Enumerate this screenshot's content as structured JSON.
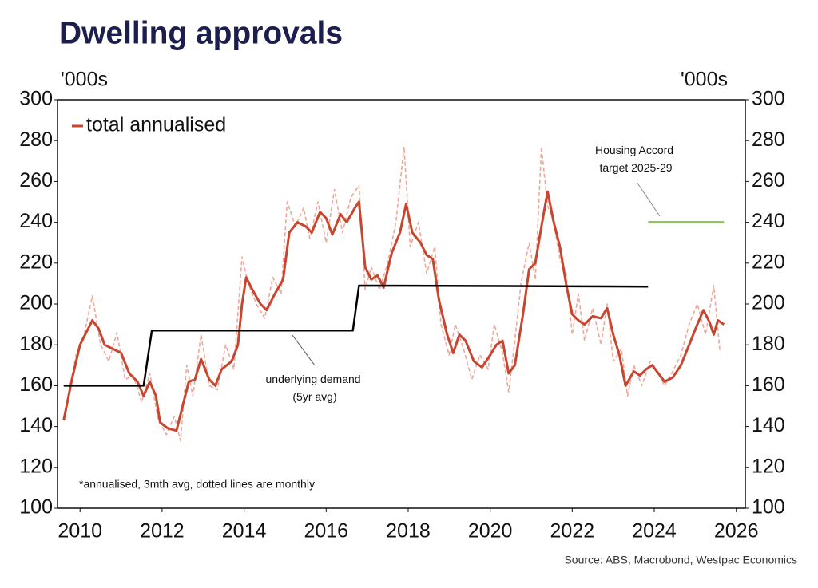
{
  "chart_data": {
    "type": "line",
    "title": "Dwelling approvals",
    "y_unit": "'000s",
    "source": "Source: ABS, Macrobond, Westpac Economics",
    "footnote": "*annualised, 3mth avg, dotted lines are monthly",
    "annotations": [
      {
        "lines": [
          "Housing Accord",
          "target 2025-29"
        ]
      },
      {
        "lines": [
          "underlying demand",
          "(5yr avg)"
        ]
      }
    ],
    "xlim": [
      2009.45,
      2026.22
    ],
    "xticks": [
      2010,
      2012,
      2014,
      2016,
      2018,
      2020,
      2022,
      2024,
      2026
    ],
    "ylim": [
      100,
      300
    ],
    "yticks": [
      100,
      120,
      140,
      160,
      180,
      200,
      220,
      240,
      260,
      280,
      300
    ],
    "legend": "upper left",
    "series": [
      {
        "color": "#eea898",
        "dashed": true,
        "width": 1.6,
        "x": [
          2009.6,
          2009.9,
          2010.1,
          2010.3,
          2010.5,
          2010.7,
          2010.9,
          2011.1,
          2011.3,
          2011.5,
          2011.7,
          2011.9,
          2012.1,
          2012.3,
          2012.45,
          2012.6,
          2012.75,
          2012.95,
          2013.15,
          2013.35,
          2013.55,
          2013.75,
          2013.95,
          2014.1,
          2014.3,
          2014.5,
          2014.7,
          2014.9,
          2015.05,
          2015.25,
          2015.45,
          2015.6,
          2015.8,
          2016.0,
          2016.2,
          2016.4,
          2016.6,
          2016.8,
          2016.95,
          2017.1,
          2017.3,
          2017.5,
          2017.7,
          2017.9,
          2018.05,
          2018.25,
          2018.45,
          2018.65,
          2018.8,
          2019.0,
          2019.15,
          2019.35,
          2019.55,
          2019.75,
          2019.95,
          2020.1,
          2020.3,
          2020.45,
          2020.6,
          2020.75,
          2020.95,
          2021.1,
          2021.25,
          2021.4,
          2021.55,
          2021.7,
          2021.85,
          2022.0,
          2022.15,
          2022.3,
          2022.5,
          2022.7,
          2022.85,
          2023.0,
          2023.2,
          2023.35,
          2023.5,
          2023.7,
          2023.9,
          2024.05,
          2024.25,
          2024.45,
          2024.65,
          2024.85,
          2025.05,
          2025.25,
          2025.45,
          2025.6
        ],
        "values": [
          143,
          175,
          185,
          204,
          180,
          172,
          186,
          163,
          165,
          152,
          166,
          144,
          136,
          145,
          133,
          170,
          155,
          185,
          160,
          158,
          180,
          168,
          223,
          210,
          200,
          193,
          213,
          205,
          250,
          238,
          247,
          232,
          250,
          230,
          256,
          235,
          252,
          258,
          207,
          218,
          207,
          220,
          240,
          277,
          228,
          240,
          215,
          228,
          190,
          175,
          190,
          178,
          163,
          175,
          168,
          190,
          176,
          157,
          182,
          210,
          230,
          212,
          277,
          248,
          240,
          222,
          215,
          185,
          205,
          182,
          198,
          180,
          200,
          172,
          178,
          155,
          170,
          160,
          172,
          168,
          160,
          167,
          175,
          190,
          200,
          185,
          209,
          177
        ]
      },
      {
        "name": "total annualised",
        "color": "#c8452f",
        "width": 3,
        "x": [
          2009.6,
          2009.8,
          2010.0,
          2010.15,
          2010.3,
          2010.45,
          2010.6,
          2010.8,
          2011.0,
          2011.2,
          2011.4,
          2011.55,
          2011.7,
          2011.85,
          2011.95,
          2012.15,
          2012.35,
          2012.5,
          2012.65,
          2012.8,
          2012.95,
          2013.15,
          2013.3,
          2013.45,
          2013.7,
          2013.85,
          2013.95,
          2014.05,
          2014.2,
          2014.4,
          2014.55,
          2014.75,
          2014.95,
          2015.1,
          2015.3,
          2015.5,
          2015.65,
          2015.85,
          2016.0,
          2016.15,
          2016.35,
          2016.5,
          2016.7,
          2016.8,
          2016.95,
          2017.1,
          2017.25,
          2017.4,
          2017.6,
          2017.8,
          2017.95,
          2018.1,
          2018.3,
          2018.45,
          2018.6,
          2018.75,
          2018.95,
          2019.1,
          2019.25,
          2019.4,
          2019.6,
          2019.8,
          2020.0,
          2020.15,
          2020.3,
          2020.45,
          2020.6,
          2020.8,
          2020.95,
          2021.1,
          2021.25,
          2021.4,
          2021.55,
          2021.7,
          2021.85,
          2022.0,
          2022.15,
          2022.3,
          2022.5,
          2022.7,
          2022.85,
          2023.0,
          2023.15,
          2023.3,
          2023.5,
          2023.65,
          2023.8,
          2023.95,
          2024.1,
          2024.25,
          2024.45,
          2024.65,
          2024.85,
          2025.05,
          2025.2,
          2025.35,
          2025.45,
          2025.55,
          2025.7
        ],
        "values": [
          143,
          163,
          180,
          186,
          192,
          188,
          180,
          178,
          176,
          166,
          162,
          155,
          162,
          155,
          142,
          139,
          138,
          150,
          162,
          163,
          173,
          163,
          160,
          168,
          172,
          180,
          200,
          213,
          207,
          200,
          197,
          205,
          212,
          235,
          240,
          238,
          235,
          245,
          242,
          234,
          244,
          240,
          247,
          250,
          218,
          212,
          214,
          208,
          225,
          235,
          249,
          235,
          230,
          224,
          222,
          202,
          185,
          176,
          185,
          182,
          172,
          169,
          175,
          180,
          182,
          166,
          170,
          195,
          217,
          220,
          238,
          255,
          240,
          228,
          210,
          195,
          192,
          190,
          194,
          193,
          198,
          185,
          175,
          160,
          167,
          165,
          168,
          170,
          166,
          162,
          164,
          170,
          180,
          190,
          197,
          191,
          185,
          192,
          190
        ]
      },
      {
        "color": "#000000",
        "width": 2.5,
        "x": [
          2009.6,
          2011.55,
          2011.75,
          2016.65,
          2016.8,
          2021.5,
          2023.85
        ],
        "values": [
          160,
          160,
          187,
          187,
          209,
          208.7,
          208.5
        ]
      },
      {
        "color": "#8cc152",
        "width": 3,
        "x": [
          2023.85,
          2025.7
        ],
        "values": [
          240,
          240
        ]
      }
    ]
  }
}
